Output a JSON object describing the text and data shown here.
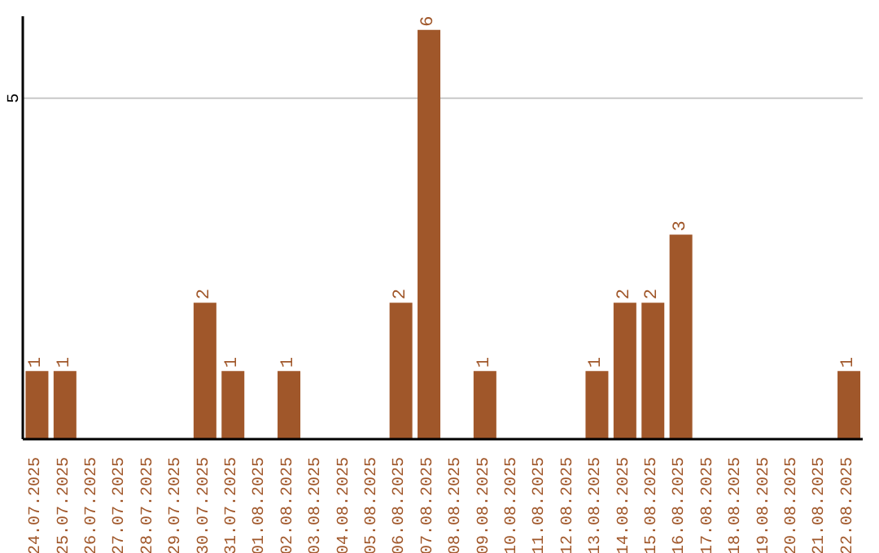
{
  "chart_data": {
    "type": "bar",
    "categories": [
      "24.07.2025",
      "25.07.2025",
      "26.07.2025",
      "27.07.2025",
      "28.07.2025",
      "29.07.2025",
      "30.07.2025",
      "31.07.2025",
      "01.08.2025",
      "02.08.2025",
      "03.08.2025",
      "04.08.2025",
      "05.08.2025",
      "06.08.2025",
      "07.08.2025",
      "08.08.2025",
      "09.08.2025",
      "10.08.2025",
      "11.08.2025",
      "12.08.2025",
      "13.08.2025",
      "14.08.2025",
      "15.08.2025",
      "16.08.2025",
      "17.08.2025",
      "18.08.2025",
      "19.08.2025",
      "20.08.2025",
      "21.08.2025",
      "22.08.2025"
    ],
    "values": [
      1,
      1,
      0,
      0,
      0,
      0,
      2,
      1,
      0,
      1,
      0,
      0,
      0,
      2,
      6,
      0,
      1,
      0,
      0,
      0,
      1,
      2,
      2,
      3,
      0,
      0,
      0,
      0,
      0,
      1
    ],
    "value_labels": [
      "1",
      "1",
      null,
      null,
      null,
      null,
      "2",
      "1",
      null,
      "1",
      null,
      null,
      null,
      "2",
      "6",
      null,
      "1",
      null,
      null,
      null,
      "1",
      "2",
      "2",
      "3",
      null,
      null,
      null,
      null,
      null,
      "1"
    ],
    "color": "#a0572a",
    "ylim": [
      0,
      6.2
    ],
    "yticks": [
      5
    ],
    "grid": "y"
  }
}
